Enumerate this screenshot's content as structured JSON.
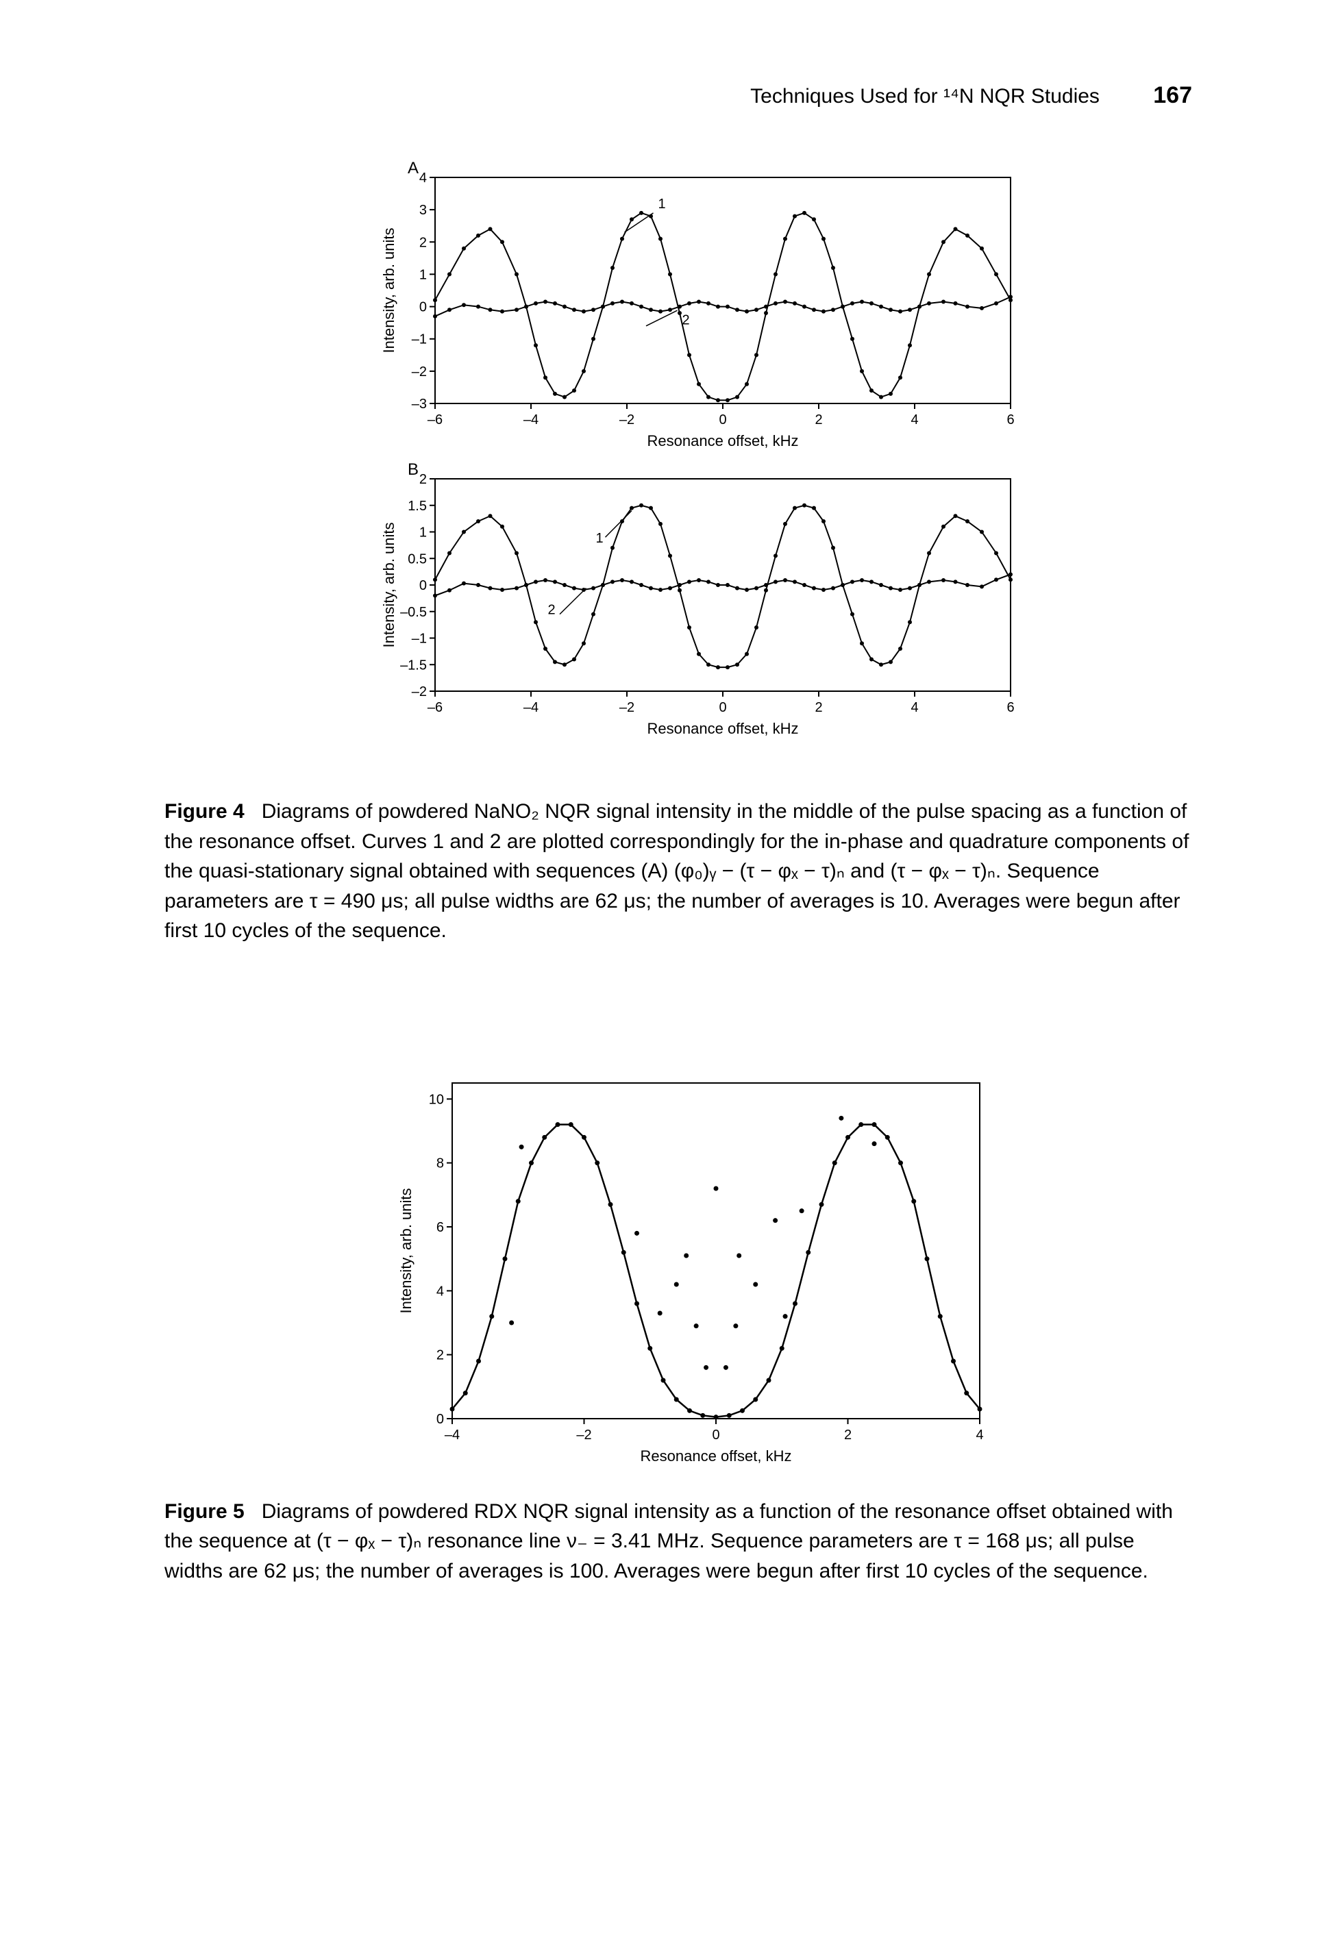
{
  "header": {
    "running_title": "Techniques Used for ¹⁴N NQR Studies",
    "page_number": "167"
  },
  "figure4": {
    "label": "Figure 4",
    "caption_html": "Diagrams of powdered NaNO₂ NQR signal intensity in the middle of the pulse spacing as a function of the resonance offset. Curves 1 and 2 are plotted correspondingly for the in-phase and quadrature components of the quasi-stationary signal obtained with sequences (A) (φ₀)ᵧ − (τ − φₓ − τ)ₙ and (τ − φₓ − τ)ₙ. Sequence parameters are τ = 490 μs; all pulse widths are 62 μs; the number of averages is 10. Averages were begun after first 10 cycles of the sequence.",
    "panelA": {
      "panel_letter": "A",
      "xlabel": "Resonance offset, kHz",
      "ylabel": "Intensity, arb. units",
      "xlim": [
        -6,
        6
      ],
      "ylim": [
        -3,
        4
      ],
      "xticks": [
        -6,
        -4,
        -2,
        0,
        2,
        4,
        6
      ],
      "yticks": [
        -3,
        -2,
        -1,
        0,
        1,
        2,
        3,
        4
      ],
      "curve1_label": "1",
      "curve2_label": "2",
      "curve1": [
        [
          -6.0,
          0.2
        ],
        [
          -5.7,
          1.0
        ],
        [
          -5.4,
          1.8
        ],
        [
          -5.1,
          2.2
        ],
        [
          -4.85,
          2.4
        ],
        [
          -4.6,
          2.0
        ],
        [
          -4.3,
          1.0
        ],
        [
          -4.1,
          0.0
        ],
        [
          -3.9,
          -1.2
        ],
        [
          -3.7,
          -2.2
        ],
        [
          -3.5,
          -2.7
        ],
        [
          -3.3,
          -2.8
        ],
        [
          -3.1,
          -2.6
        ],
        [
          -2.9,
          -2.0
        ],
        [
          -2.7,
          -1.0
        ],
        [
          -2.5,
          0.0
        ],
        [
          -2.3,
          1.2
        ],
        [
          -2.1,
          2.1
        ],
        [
          -1.9,
          2.7
        ],
        [
          -1.7,
          2.9
        ],
        [
          -1.5,
          2.8
        ],
        [
          -1.3,
          2.1
        ],
        [
          -1.1,
          1.0
        ],
        [
          -0.9,
          -0.2
        ],
        [
          -0.7,
          -1.5
        ],
        [
          -0.5,
          -2.4
        ],
        [
          -0.3,
          -2.8
        ],
        [
          -0.1,
          -2.9
        ],
        [
          0.1,
          -2.9
        ],
        [
          0.3,
          -2.8
        ],
        [
          0.5,
          -2.4
        ],
        [
          0.7,
          -1.5
        ],
        [
          0.9,
          -0.2
        ],
        [
          1.1,
          1.0
        ],
        [
          1.3,
          2.1
        ],
        [
          1.5,
          2.8
        ],
        [
          1.7,
          2.9
        ],
        [
          1.9,
          2.7
        ],
        [
          2.1,
          2.1
        ],
        [
          2.3,
          1.2
        ],
        [
          2.5,
          0.0
        ],
        [
          2.7,
          -1.0
        ],
        [
          2.9,
          -2.0
        ],
        [
          3.1,
          -2.6
        ],
        [
          3.3,
          -2.8
        ],
        [
          3.5,
          -2.7
        ],
        [
          3.7,
          -2.2
        ],
        [
          3.9,
          -1.2
        ],
        [
          4.1,
          0.0
        ],
        [
          4.3,
          1.0
        ],
        [
          4.6,
          2.0
        ],
        [
          4.85,
          2.4
        ],
        [
          5.1,
          2.2
        ],
        [
          5.4,
          1.8
        ],
        [
          5.7,
          1.0
        ],
        [
          6.0,
          0.2
        ]
      ],
      "curve2": [
        [
          -6.0,
          -0.3
        ],
        [
          -5.7,
          -0.1
        ],
        [
          -5.4,
          0.05
        ],
        [
          -5.1,
          0.0
        ],
        [
          -4.85,
          -0.1
        ],
        [
          -4.6,
          -0.15
        ],
        [
          -4.3,
          -0.1
        ],
        [
          -4.1,
          0.0
        ],
        [
          -3.9,
          0.1
        ],
        [
          -3.7,
          0.15
        ],
        [
          -3.5,
          0.1
        ],
        [
          -3.3,
          0.0
        ],
        [
          -3.1,
          -0.1
        ],
        [
          -2.9,
          -0.15
        ],
        [
          -2.7,
          -0.1
        ],
        [
          -2.5,
          0.0
        ],
        [
          -2.3,
          0.1
        ],
        [
          -2.1,
          0.15
        ],
        [
          -1.9,
          0.1
        ],
        [
          -1.7,
          0.0
        ],
        [
          -1.5,
          -0.1
        ],
        [
          -1.3,
          -0.15
        ],
        [
          -1.1,
          -0.1
        ],
        [
          -0.9,
          0.0
        ],
        [
          -0.7,
          0.1
        ],
        [
          -0.5,
          0.15
        ],
        [
          -0.3,
          0.1
        ],
        [
          -0.1,
          0.0
        ],
        [
          0.1,
          0.0
        ],
        [
          0.3,
          -0.1
        ],
        [
          0.5,
          -0.15
        ],
        [
          0.7,
          -0.1
        ],
        [
          0.9,
          0.0
        ],
        [
          1.1,
          0.1
        ],
        [
          1.3,
          0.15
        ],
        [
          1.5,
          0.1
        ],
        [
          1.7,
          0.0
        ],
        [
          1.9,
          -0.1
        ],
        [
          2.1,
          -0.15
        ],
        [
          2.3,
          -0.1
        ],
        [
          2.5,
          0.0
        ],
        [
          2.7,
          0.1
        ],
        [
          2.9,
          0.15
        ],
        [
          3.1,
          0.1
        ],
        [
          3.3,
          0.0
        ],
        [
          3.5,
          -0.1
        ],
        [
          3.7,
          -0.15
        ],
        [
          3.9,
          -0.1
        ],
        [
          4.1,
          0.0
        ],
        [
          4.3,
          0.1
        ],
        [
          4.6,
          0.15
        ],
        [
          4.85,
          0.1
        ],
        [
          5.1,
          0.0
        ],
        [
          5.4,
          -0.05
        ],
        [
          5.7,
          0.1
        ],
        [
          6.0,
          0.3
        ]
      ],
      "curve_color": "#000000",
      "line_width": 2,
      "marker_size": 3
    },
    "panelB": {
      "panel_letter": "B",
      "xlabel": "Resonance offset, kHz",
      "ylabel": "Intensity, arb. units",
      "xlim": [
        -6,
        6
      ],
      "ylim": [
        -2,
        2
      ],
      "xticks": [
        -6,
        -4,
        -2,
        0,
        2,
        4,
        6
      ],
      "yticks": [
        -2,
        -1.5,
        -1,
        -0.5,
        0,
        0.5,
        1,
        1.5,
        2
      ],
      "curve1_label": "1",
      "curve2_label": "2",
      "curve1": [
        [
          -6.0,
          0.1
        ],
        [
          -5.7,
          0.6
        ],
        [
          -5.4,
          1.0
        ],
        [
          -5.1,
          1.2
        ],
        [
          -4.85,
          1.3
        ],
        [
          -4.6,
          1.1
        ],
        [
          -4.3,
          0.6
        ],
        [
          -4.1,
          0.0
        ],
        [
          -3.9,
          -0.7
        ],
        [
          -3.7,
          -1.2
        ],
        [
          -3.5,
          -1.45
        ],
        [
          -3.3,
          -1.5
        ],
        [
          -3.1,
          -1.4
        ],
        [
          -2.9,
          -1.1
        ],
        [
          -2.7,
          -0.55
        ],
        [
          -2.5,
          0.0
        ],
        [
          -2.3,
          0.7
        ],
        [
          -2.1,
          1.2
        ],
        [
          -1.9,
          1.45
        ],
        [
          -1.7,
          1.5
        ],
        [
          -1.5,
          1.45
        ],
        [
          -1.3,
          1.15
        ],
        [
          -1.1,
          0.55
        ],
        [
          -0.9,
          -0.1
        ],
        [
          -0.7,
          -0.8
        ],
        [
          -0.5,
          -1.3
        ],
        [
          -0.3,
          -1.5
        ],
        [
          -0.1,
          -1.55
        ],
        [
          0.1,
          -1.55
        ],
        [
          0.3,
          -1.5
        ],
        [
          0.5,
          -1.3
        ],
        [
          0.7,
          -0.8
        ],
        [
          0.9,
          -0.1
        ],
        [
          1.1,
          0.55
        ],
        [
          1.3,
          1.15
        ],
        [
          1.5,
          1.45
        ],
        [
          1.7,
          1.5
        ],
        [
          1.9,
          1.45
        ],
        [
          2.1,
          1.2
        ],
        [
          2.3,
          0.7
        ],
        [
          2.5,
          0.0
        ],
        [
          2.7,
          -0.55
        ],
        [
          2.9,
          -1.1
        ],
        [
          3.1,
          -1.4
        ],
        [
          3.3,
          -1.5
        ],
        [
          3.5,
          -1.45
        ],
        [
          3.7,
          -1.2
        ],
        [
          3.9,
          -0.7
        ],
        [
          4.1,
          0.0
        ],
        [
          4.3,
          0.6
        ],
        [
          4.6,
          1.1
        ],
        [
          4.85,
          1.3
        ],
        [
          5.1,
          1.2
        ],
        [
          5.4,
          1.0
        ],
        [
          5.7,
          0.6
        ],
        [
          6.0,
          0.1
        ]
      ],
      "curve2": [
        [
          -6.0,
          -0.2
        ],
        [
          -5.7,
          -0.1
        ],
        [
          -5.4,
          0.03
        ],
        [
          -5.1,
          0.0
        ],
        [
          -4.85,
          -0.06
        ],
        [
          -4.6,
          -0.09
        ],
        [
          -4.3,
          -0.06
        ],
        [
          -4.1,
          0.0
        ],
        [
          -3.9,
          0.06
        ],
        [
          -3.7,
          0.09
        ],
        [
          -3.5,
          0.06
        ],
        [
          -3.3,
          0.0
        ],
        [
          -3.1,
          -0.06
        ],
        [
          -2.9,
          -0.09
        ],
        [
          -2.7,
          -0.06
        ],
        [
          -2.5,
          0.0
        ],
        [
          -2.3,
          0.06
        ],
        [
          -2.1,
          0.09
        ],
        [
          -1.9,
          0.06
        ],
        [
          -1.7,
          0.0
        ],
        [
          -1.5,
          -0.06
        ],
        [
          -1.3,
          -0.09
        ],
        [
          -1.1,
          -0.06
        ],
        [
          -0.9,
          0.0
        ],
        [
          -0.7,
          0.06
        ],
        [
          -0.5,
          0.09
        ],
        [
          -0.3,
          0.06
        ],
        [
          -0.1,
          0.0
        ],
        [
          0.1,
          0.0
        ],
        [
          0.3,
          -0.06
        ],
        [
          0.5,
          -0.09
        ],
        [
          0.7,
          -0.06
        ],
        [
          0.9,
          0.0
        ],
        [
          1.1,
          0.06
        ],
        [
          1.3,
          0.09
        ],
        [
          1.5,
          0.06
        ],
        [
          1.7,
          0.0
        ],
        [
          1.9,
          -0.06
        ],
        [
          2.1,
          -0.09
        ],
        [
          2.3,
          -0.06
        ],
        [
          2.5,
          0.0
        ],
        [
          2.7,
          0.06
        ],
        [
          2.9,
          0.09
        ],
        [
          3.1,
          0.06
        ],
        [
          3.3,
          0.0
        ],
        [
          3.5,
          -0.06
        ],
        [
          3.7,
          -0.09
        ],
        [
          3.9,
          -0.06
        ],
        [
          4.1,
          0.0
        ],
        [
          4.3,
          0.06
        ],
        [
          4.6,
          0.09
        ],
        [
          4.85,
          0.06
        ],
        [
          5.1,
          0.0
        ],
        [
          5.4,
          -0.03
        ],
        [
          5.7,
          0.1
        ],
        [
          6.0,
          0.2
        ]
      ],
      "curve_color": "#000000",
      "line_width": 2,
      "marker_size": 3
    }
  },
  "figure5": {
    "label": "Figure 5",
    "caption_html": "Diagrams of powdered RDX NQR signal intensity as a function of the resonance offset obtained with the sequence at (τ − φₓ − τ)ₙ resonance line ν₋ = 3.41 MHz. Sequence parameters are τ = 168 μs; all pulse widths are 62 μs; the number of averages is 100. Averages were begun after first 10 cycles of the sequence.",
    "chart": {
      "xlabel": "Resonance offset, kHz",
      "ylabel": "Intensity, arb. units",
      "xlim": [
        -4,
        4
      ],
      "ylim": [
        0,
        10.5
      ],
      "xticks": [
        -4,
        -2,
        0,
        2,
        4
      ],
      "yticks": [
        0,
        2,
        4,
        6,
        8,
        10
      ],
      "curve_color": "#000000",
      "line_width": 2.5,
      "marker_size": 3.5,
      "curve": [
        [
          -4.0,
          0.3
        ],
        [
          -3.8,
          0.8
        ],
        [
          -3.6,
          1.8
        ],
        [
          -3.4,
          3.2
        ],
        [
          -3.2,
          5.0
        ],
        [
          -3.0,
          6.8
        ],
        [
          -2.8,
          8.0
        ],
        [
          -2.6,
          8.8
        ],
        [
          -2.4,
          9.2
        ],
        [
          -2.2,
          9.2
        ],
        [
          -2.0,
          8.8
        ],
        [
          -1.8,
          8.0
        ],
        [
          -1.6,
          6.7
        ],
        [
          -1.4,
          5.2
        ],
        [
          -1.2,
          3.6
        ],
        [
          -1.0,
          2.2
        ],
        [
          -0.8,
          1.2
        ],
        [
          -0.6,
          0.6
        ],
        [
          -0.4,
          0.25
        ],
        [
          -0.2,
          0.1
        ],
        [
          0.0,
          0.05
        ],
        [
          0.2,
          0.1
        ],
        [
          0.4,
          0.25
        ],
        [
          0.6,
          0.6
        ],
        [
          0.8,
          1.2
        ],
        [
          1.0,
          2.2
        ],
        [
          1.2,
          3.6
        ],
        [
          1.4,
          5.2
        ],
        [
          1.6,
          6.7
        ],
        [
          1.8,
          8.0
        ],
        [
          2.0,
          8.8
        ],
        [
          2.2,
          9.2
        ],
        [
          2.4,
          9.2
        ],
        [
          2.6,
          8.8
        ],
        [
          2.8,
          8.0
        ],
        [
          3.0,
          6.8
        ],
        [
          3.2,
          5.0
        ],
        [
          3.4,
          3.2
        ],
        [
          3.6,
          1.8
        ],
        [
          3.8,
          0.8
        ],
        [
          4.0,
          0.3
        ]
      ],
      "scatter": [
        [
          -3.1,
          3.0
        ],
        [
          -2.95,
          8.5
        ],
        [
          -1.2,
          5.8
        ],
        [
          -0.85,
          3.3
        ],
        [
          -0.45,
          5.1
        ],
        [
          -0.3,
          2.9
        ],
        [
          -0.15,
          1.6
        ],
        [
          0.15,
          1.6
        ],
        [
          0.3,
          2.9
        ],
        [
          0.35,
          5.1
        ],
        [
          0.9,
          6.2
        ],
        [
          1.05,
          3.2
        ],
        [
          1.3,
          6.5
        ],
        [
          1.9,
          9.4
        ],
        [
          2.4,
          8.6
        ],
        [
          0.0,
          7.2
        ],
        [
          -0.6,
          4.2
        ],
        [
          0.6,
          4.2
        ]
      ]
    }
  }
}
